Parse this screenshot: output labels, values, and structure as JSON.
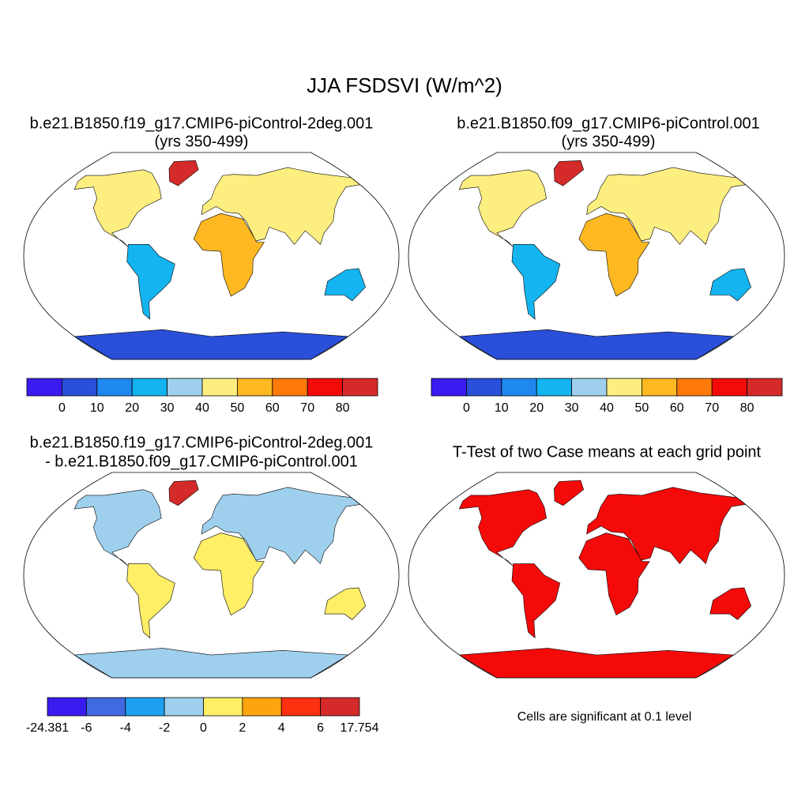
{
  "title": "JJA FSDSVI (W/m^2)",
  "panels": [
    {
      "title": [
        "b.e21.B1850.f19_g17.CMIP6-piControl-2deg.001",
        "(yrs 350-499)"
      ]
    },
    {
      "title": [
        "b.e21.B1850.f09_g17.CMIP6-piControl.001",
        "(yrs 350-499)"
      ]
    },
    {
      "title": [
        "b.e21.B1850.f19_g17.CMIP6-piControl-2deg.001",
        "- b.e21.B1850.f09_g17.CMIP6-piControl.001"
      ]
    },
    {
      "title": [
        "T-Test of two Case means at each grid point"
      ],
      "note": "Cells are significant at 0.1 level"
    }
  ],
  "colorbars": [
    {
      "colors": [
        "#3a1cf0",
        "#2a4fd8",
        "#1e88ef",
        "#13b4ef",
        "#9ed0ee",
        "#fdee80",
        "#fdb822",
        "#fd7a0a",
        "#f50a0a",
        "#d42a2a"
      ],
      "ticks": [
        0,
        10,
        20,
        30,
        40,
        50,
        60,
        70,
        80
      ]
    },
    {
      "colors": [
        "#3a1cf0",
        "#2a4fd8",
        "#1e88ef",
        "#13b4ef",
        "#9ed0ee",
        "#fdee80",
        "#fdb822",
        "#fd7a0a",
        "#f50a0a",
        "#d42a2a"
      ],
      "ticks": [
        0,
        10,
        20,
        30,
        40,
        50,
        60,
        70,
        80
      ]
    },
    {
      "colors": [
        "#3a1cf0",
        "#4169e1",
        "#1ea0f0",
        "#9ed0ee",
        "#ffee66",
        "#fda50f",
        "#fd3010",
        "#d42a2a"
      ],
      "ticks": [
        -24.381,
        -6,
        -4,
        -2,
        0,
        2,
        4,
        6,
        17.754
      ]
    }
  ]
}
